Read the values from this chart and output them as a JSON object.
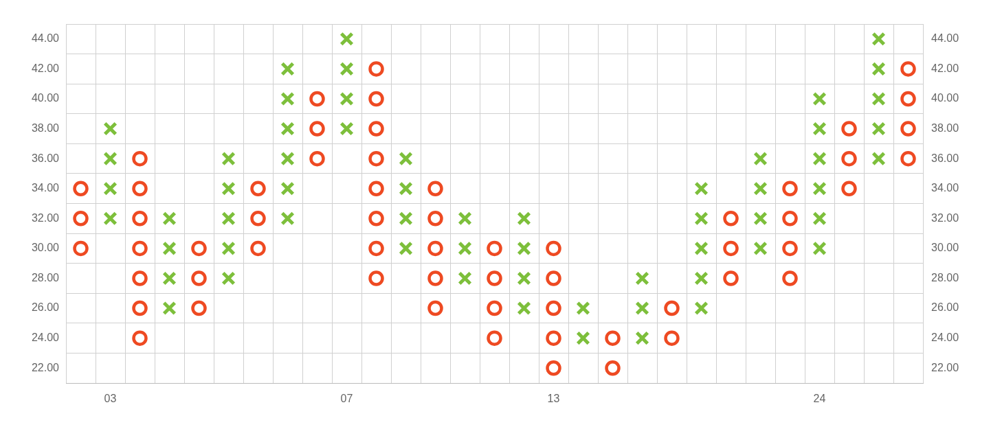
{
  "chart_data": {
    "type": "scatter",
    "grid": true,
    "legend": false,
    "categories": [
      null,
      "03",
      null,
      null,
      null,
      null,
      null,
      null,
      null,
      "07",
      null,
      null,
      null,
      null,
      null,
      null,
      "13",
      null,
      null,
      null,
      null,
      null,
      null,
      null,
      null,
      "24",
      null,
      null,
      null
    ],
    "ylim": [
      21,
      45
    ],
    "yticks": [
      {
        "value": 21,
        "label": null
      },
      {
        "value": 22,
        "label": "22.00"
      },
      {
        "value": 23,
        "label": null
      },
      {
        "value": 24,
        "label": "24.00"
      },
      {
        "value": 25,
        "label": null
      },
      {
        "value": 26,
        "label": "26.00"
      },
      {
        "value": 27,
        "label": null
      },
      {
        "value": 28,
        "label": "28.00"
      },
      {
        "value": 29,
        "label": null
      },
      {
        "value": 30,
        "label": "30.00"
      },
      {
        "value": 31,
        "label": null
      },
      {
        "value": 32,
        "label": "32.00"
      },
      {
        "value": 33,
        "label": null
      },
      {
        "value": 34,
        "label": "34.00"
      },
      {
        "value": 35,
        "label": null
      },
      {
        "value": 36,
        "label": "36.00"
      },
      {
        "value": 37,
        "label": null
      },
      {
        "value": 38,
        "label": "38.00"
      },
      {
        "value": 39,
        "label": null
      },
      {
        "value": 40,
        "label": "40.00"
      },
      {
        "value": 41,
        "label": null
      },
      {
        "value": 42,
        "label": "42.00"
      },
      {
        "value": 43,
        "label": null
      },
      {
        "value": 44,
        "label": "44.00"
      },
      {
        "value": 45,
        "label": null
      }
    ],
    "y2lim": [
      21,
      45
    ],
    "y2ticks": [
      {
        "value": 21,
        "label": null
      },
      {
        "value": 22,
        "label": "22.00"
      },
      {
        "value": 23,
        "label": null
      },
      {
        "value": 24,
        "label": "24.00"
      },
      {
        "value": 25,
        "label": null
      },
      {
        "value": 26,
        "label": "26.00"
      },
      {
        "value": 27,
        "label": null
      },
      {
        "value": 28,
        "label": "28.00"
      },
      {
        "value": 29,
        "label": null
      },
      {
        "value": 30,
        "label": "30.00"
      },
      {
        "value": 31,
        "label": null
      },
      {
        "value": 32,
        "label": "32.00"
      },
      {
        "value": 33,
        "label": null
      },
      {
        "value": 34,
        "label": "34.00"
      },
      {
        "value": 35,
        "label": null
      },
      {
        "value": 36,
        "label": "36.00"
      },
      {
        "value": 37,
        "label": null
      },
      {
        "value": 38,
        "label": "38.00"
      },
      {
        "value": 39,
        "label": null
      },
      {
        "value": 40,
        "label": "40.00"
      },
      {
        "value": 41,
        "label": null
      },
      {
        "value": 42,
        "label": "42.00"
      },
      {
        "value": 43,
        "label": null
      },
      {
        "value": 44,
        "label": "44.00"
      },
      {
        "value": 45,
        "label": null
      }
    ],
    "series": [
      {
        "color": "#7dbf3b",
        "marker": "cross",
        "values": [
          null,
          32,
          null,
          26,
          null,
          28,
          null,
          32,
          null,
          38,
          null,
          30,
          null,
          28,
          null,
          26,
          null,
          24,
          null,
          24,
          null,
          26,
          null,
          30,
          null,
          30,
          null,
          36,
          null
        ]
      },
      {
        "color": "#7dbf3b",
        "marker": "cross",
        "values": [
          null,
          34,
          null,
          28,
          null,
          30,
          null,
          34,
          null,
          40,
          null,
          32,
          null,
          30,
          null,
          28,
          null,
          26,
          null,
          26,
          null,
          28,
          null,
          32,
          null,
          32,
          null,
          38,
          null
        ]
      },
      {
        "color": "#7dbf3b",
        "marker": "cross",
        "values": [
          null,
          36,
          null,
          30,
          null,
          32,
          null,
          36,
          null,
          42,
          null,
          34,
          null,
          32,
          null,
          30,
          null,
          null,
          null,
          28,
          null,
          30,
          null,
          34,
          null,
          34,
          null,
          40,
          null
        ]
      },
      {
        "color": "#7dbf3b",
        "marker": "cross",
        "values": [
          null,
          38,
          null,
          32,
          null,
          34,
          null,
          38,
          null,
          44,
          null,
          36,
          null,
          null,
          null,
          32,
          null,
          null,
          null,
          null,
          null,
          32,
          null,
          36,
          null,
          36,
          null,
          42,
          null
        ]
      },
      {
        "color": "#7dbf3b",
        "marker": "cross",
        "values": [
          null,
          null,
          null,
          null,
          null,
          36,
          null,
          40,
          null,
          null,
          null,
          null,
          null,
          null,
          null,
          null,
          null,
          null,
          null,
          null,
          null,
          34,
          null,
          null,
          null,
          38,
          null,
          44,
          null
        ]
      },
      {
        "color": "#7dbf3b",
        "marker": "cross",
        "values": [
          null,
          null,
          null,
          null,
          null,
          null,
          null,
          42,
          null,
          null,
          null,
          null,
          null,
          null,
          null,
          null,
          null,
          null,
          null,
          null,
          null,
          null,
          null,
          null,
          null,
          40,
          null,
          null,
          null
        ]
      },
      {
        "color": "#ee4a22",
        "marker": "circle",
        "values": [
          30,
          null,
          24,
          null,
          26,
          null,
          30,
          null,
          36,
          null,
          28,
          null,
          26,
          null,
          24,
          null,
          22,
          null,
          22,
          null,
          24,
          null,
          28,
          null,
          28,
          null,
          34,
          null,
          36
        ]
      },
      {
        "color": "#ee4a22",
        "marker": "circle",
        "values": [
          32,
          null,
          26,
          null,
          28,
          null,
          32,
          null,
          38,
          null,
          30,
          null,
          28,
          null,
          26,
          null,
          24,
          null,
          24,
          null,
          26,
          null,
          30,
          null,
          30,
          null,
          36,
          null,
          38
        ]
      },
      {
        "color": "#ee4a22",
        "marker": "circle",
        "values": [
          34,
          null,
          28,
          null,
          30,
          null,
          34,
          null,
          40,
          null,
          32,
          null,
          30,
          null,
          28,
          null,
          26,
          null,
          null,
          null,
          null,
          null,
          32,
          null,
          32,
          null,
          38,
          null,
          40
        ]
      },
      {
        "color": "#ee4a22",
        "marker": "circle",
        "values": [
          null,
          null,
          30,
          null,
          null,
          null,
          null,
          null,
          null,
          null,
          34,
          null,
          32,
          null,
          30,
          null,
          28,
          null,
          null,
          null,
          null,
          null,
          null,
          null,
          34,
          null,
          null,
          null,
          42
        ]
      },
      {
        "color": "#ee4a22",
        "marker": "circle",
        "values": [
          null,
          null,
          32,
          null,
          null,
          null,
          null,
          null,
          null,
          null,
          36,
          null,
          34,
          null,
          null,
          null,
          30,
          null,
          null,
          null,
          null,
          null,
          null,
          null,
          null,
          null,
          null,
          null,
          null
        ]
      },
      {
        "color": "#ee4a22",
        "marker": "circle",
        "values": [
          null,
          null,
          34,
          null,
          null,
          null,
          null,
          null,
          null,
          null,
          38,
          null,
          null,
          null,
          null,
          null,
          null,
          null,
          null,
          null,
          null,
          null,
          null,
          null,
          null,
          null,
          null,
          null,
          null
        ]
      },
      {
        "color": "#ee4a22",
        "marker": "circle",
        "values": [
          null,
          null,
          36,
          null,
          null,
          null,
          null,
          null,
          null,
          null,
          40,
          null,
          null,
          null,
          null,
          null,
          null,
          null,
          null,
          null,
          null,
          null,
          null,
          null,
          null,
          null,
          null,
          null,
          null
        ]
      },
      {
        "color": "#ee4a22",
        "marker": "circle",
        "values": [
          null,
          null,
          null,
          null,
          null,
          null,
          null,
          null,
          null,
          null,
          42,
          null,
          null,
          null,
          null,
          null,
          null,
          null,
          null,
          null,
          null,
          null,
          null,
          null,
          null,
          null,
          null,
          null,
          null
        ]
      }
    ]
  }
}
